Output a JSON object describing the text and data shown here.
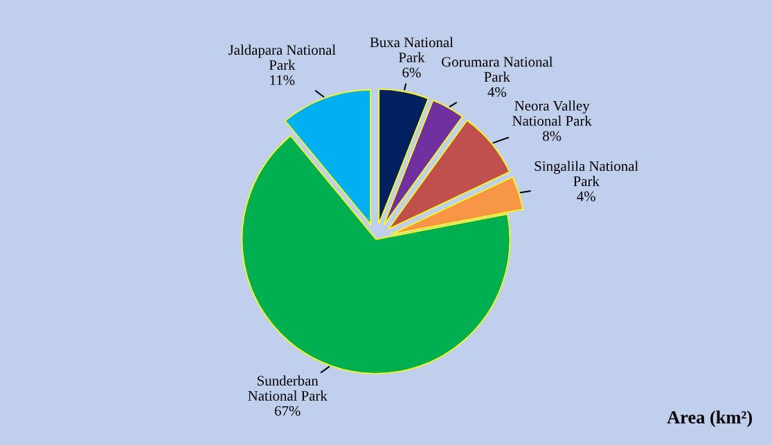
{
  "chart_data": {
    "type": "pie",
    "title": "Area (km²)",
    "categories": [
      "Buxa National\nPark",
      "Gorumara National\nPark",
      "Neora Valley\nNational Park",
      "Singalila National\nPark",
      "Sunderban\nNational Park",
      "Jaldapara National\nPark"
    ],
    "values": [
      6,
      4,
      8,
      4,
      67,
      11
    ],
    "colors": [
      "#002060",
      "#7030a0",
      "#c0504d",
      "#f79646",
      "#00b050",
      "#00b0f0"
    ],
    "value_labels": [
      "6%",
      "4%",
      "8%",
      "4%",
      "67%",
      "11%"
    ],
    "legend": false
  }
}
